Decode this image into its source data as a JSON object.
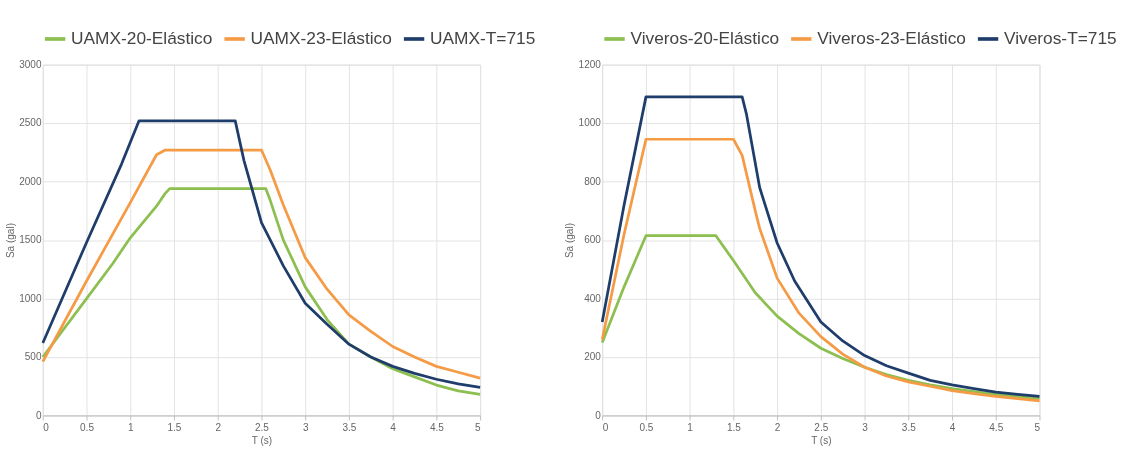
{
  "chart_data": [
    {
      "type": "line",
      "xlabel": "T (s)",
      "ylabel": "Sa (gal)",
      "xlim": [
        0,
        5
      ],
      "xticks": [
        0,
        0.5,
        1,
        1.5,
        2,
        2.5,
        3,
        3.5,
        4,
        4.5,
        5
      ],
      "ylim": [
        0,
        3000
      ],
      "yticks": [
        0,
        500,
        1000,
        1500,
        2000,
        2500,
        3000
      ],
      "grid": true,
      "legend": "top",
      "marker": "none",
      "line_style": "solid",
      "series": [
        {
          "name": "UAMX-20-Elástico",
          "color": "#8cbf4f",
          "x": [
            0,
            0.5,
            0.8,
            1,
            1.3,
            1.4,
            1.45,
            2.55,
            2.6,
            2.75,
            3,
            3.25,
            3.5,
            3.75,
            4,
            4.25,
            4.5,
            4.75,
            5
          ],
          "values": [
            500,
            1000,
            1300,
            1520,
            1790,
            1900,
            1940,
            1940,
            1840,
            1500,
            1100,
            820,
            610,
            500,
            400,
            330,
            260,
            210,
            180
          ]
        },
        {
          "name": "UAMX-23-Elástico",
          "color": "#f59a45",
          "x": [
            0,
            0.5,
            1,
            1.3,
            1.4,
            2.5,
            2.6,
            2.75,
            3,
            3.25,
            3.5,
            3.75,
            4,
            4.25,
            4.5,
            4.75,
            5
          ],
          "values": [
            460,
            1150,
            1820,
            2230,
            2270,
            2270,
            2100,
            1800,
            1350,
            1080,
            860,
            720,
            590,
            500,
            420,
            370,
            320
          ]
        },
        {
          "name": "UAMX-T=715",
          "color": "#1f3d6b",
          "x": [
            0,
            0.5,
            0.9,
            1.1,
            2.2,
            2.3,
            2.5,
            2.75,
            3,
            3.25,
            3.5,
            3.75,
            4,
            4.25,
            4.5,
            4.75,
            5
          ],
          "values": [
            620,
            1480,
            2150,
            2520,
            2520,
            2180,
            1650,
            1280,
            960,
            780,
            610,
            500,
            420,
            360,
            310,
            270,
            240
          ]
        }
      ]
    },
    {
      "type": "line",
      "xlabel": "T (s)",
      "ylabel": "Sa (gal)",
      "xlim": [
        0,
        5
      ],
      "xticks": [
        0,
        0.5,
        1,
        1.5,
        2,
        2.5,
        3,
        3.5,
        4,
        4.5,
        5
      ],
      "ylim": [
        0,
        1200
      ],
      "yticks": [
        0,
        200,
        400,
        600,
        800,
        1000,
        1200
      ],
      "grid": true,
      "legend": "top",
      "marker": "none",
      "line_style": "solid",
      "series": [
        {
          "name": "Viveros-20-Elástico",
          "color": "#8cbf4f",
          "x": [
            0,
            0.25,
            0.5,
            1.3,
            1.5,
            1.75,
            2,
            2.25,
            2.5,
            2.75,
            3,
            3.25,
            3.5,
            3.75,
            4,
            4.25,
            4.5,
            4.75,
            5
          ],
          "values": [
            250,
            440,
            615,
            615,
            530,
            420,
            340,
            280,
            230,
            195,
            165,
            140,
            120,
            105,
            92,
            82,
            72,
            65,
            58
          ]
        },
        {
          "name": "Viveros-23-Elástico",
          "color": "#f59a45",
          "x": [
            0,
            0.25,
            0.5,
            1.5,
            1.6,
            1.75,
            1.8,
            2,
            2.25,
            2.5,
            2.75,
            3,
            3.25,
            3.5,
            3.75,
            4,
            4.25,
            4.5,
            4.75,
            5
          ],
          "values": [
            260,
            620,
            945,
            945,
            890,
            700,
            640,
            470,
            350,
            270,
            210,
            165,
            135,
            115,
            100,
            85,
            75,
            65,
            58,
            50
          ]
        },
        {
          "name": "Viveros-T=715",
          "color": "#1f3d6b",
          "x": [
            0,
            0.25,
            0.5,
            1.6,
            1.65,
            1.8,
            2,
            2.2,
            2.5,
            2.75,
            3,
            3.25,
            3.5,
            3.75,
            4,
            4.25,
            4.5,
            4.75,
            5
          ],
          "values": [
            320,
            720,
            1090,
            1090,
            1030,
            780,
            590,
            460,
            320,
            255,
            205,
            170,
            145,
            120,
            105,
            92,
            80,
            72,
            65
          ]
        }
      ]
    }
  ]
}
